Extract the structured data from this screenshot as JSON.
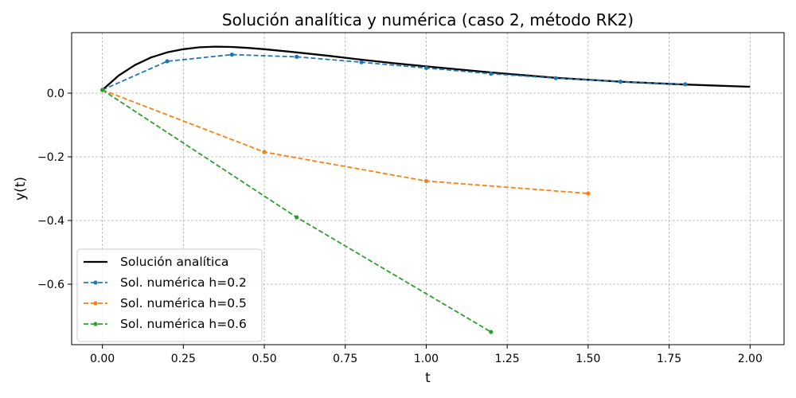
{
  "chart_data": {
    "type": "line",
    "title": "Solución analítica y numérica (caso 2, método RK2)",
    "xlabel": "t",
    "ylabel": "y(t)",
    "xlim": [
      -0.095,
      2.105
    ],
    "ylim": [
      -0.79,
      0.19
    ],
    "xticks": [
      0.0,
      0.25,
      0.5,
      0.75,
      1.0,
      1.25,
      1.5,
      1.75,
      2.0
    ],
    "xtick_labels": [
      "0.00",
      "0.25",
      "0.50",
      "0.75",
      "1.00",
      "1.25",
      "1.50",
      "1.75",
      "2.00"
    ],
    "yticks": [
      0.0,
      -0.2,
      -0.4,
      -0.6
    ],
    "ytick_labels": [
      "0.0",
      "−0.2",
      "−0.4",
      "−0.6"
    ],
    "grid": true,
    "legend_position": "lower-left",
    "series": [
      {
        "name": "Solución analítica",
        "color": "#000000",
        "style": "solid",
        "markers": false,
        "x": [
          0.0,
          0.05,
          0.1,
          0.15,
          0.2,
          0.25,
          0.3,
          0.35,
          0.4,
          0.45,
          0.5,
          0.6,
          0.7,
          0.8,
          0.9,
          1.0,
          1.2,
          1.4,
          1.6,
          1.8,
          2.0
        ],
        "y": [
          0.01,
          0.055,
          0.088,
          0.112,
          0.128,
          0.138,
          0.144,
          0.146,
          0.145,
          0.142,
          0.138,
          0.128,
          0.117,
          0.105,
          0.094,
          0.084,
          0.065,
          0.048,
          0.036,
          0.027,
          0.02
        ]
      },
      {
        "name": "Sol. numérica h=0.2",
        "color": "#1f77b4",
        "style": "dashed",
        "markers": true,
        "x": [
          0.0,
          0.2,
          0.4,
          0.6,
          0.8,
          1.0,
          1.2,
          1.4,
          1.6,
          1.8
        ],
        "y": [
          0.01,
          0.1,
          0.121,
          0.114,
          0.097,
          0.079,
          0.061,
          0.047,
          0.036,
          0.028
        ]
      },
      {
        "name": "Sol. numérica h=0.5",
        "color": "#ff7f0e",
        "style": "dashed",
        "markers": true,
        "x": [
          0.0,
          0.5,
          1.0,
          1.5
        ],
        "y": [
          0.01,
          -0.185,
          -0.276,
          -0.315
        ]
      },
      {
        "name": "Sol. numérica h=0.6",
        "color": "#2ca02c",
        "style": "dashed",
        "markers": true,
        "x": [
          0.0,
          0.6,
          1.2
        ],
        "y": [
          0.01,
          -0.39,
          -0.75
        ]
      }
    ]
  }
}
